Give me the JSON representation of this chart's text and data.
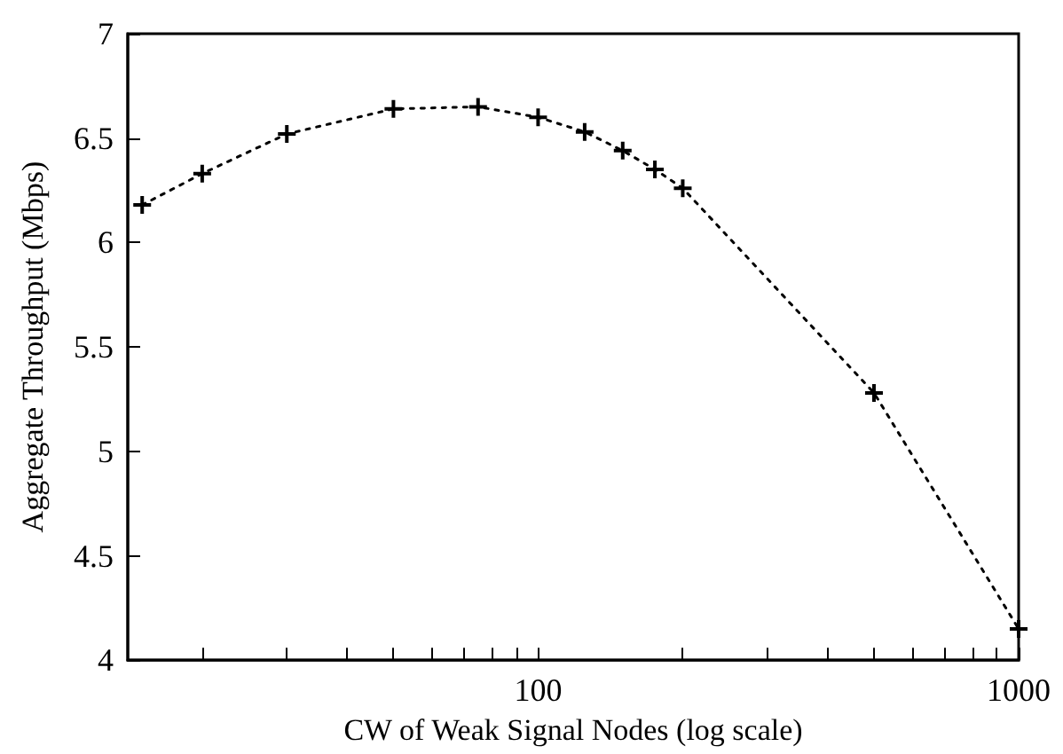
{
  "chart_data": {
    "type": "line",
    "xlabel": "CW of Weak Signal Nodes (log scale)",
    "ylabel": "Aggregate Throughput (Mbps)",
    "x": [
      15,
      20,
      30,
      50,
      75,
      100,
      125,
      150,
      175,
      200,
      500,
      1000
    ],
    "values": [
      6.18,
      6.33,
      6.52,
      6.64,
      6.65,
      6.6,
      6.53,
      6.44,
      6.35,
      6.26,
      5.28,
      4.15
    ],
    "color": "#000000",
    "marker": "cross",
    "line_style": "dotted",
    "log": "x",
    "grid": false,
    "xlim": [
      14,
      1000
    ],
    "xticks": [
      {
        "value": 20,
        "label": null
      },
      {
        "value": 30,
        "label": null
      },
      {
        "value": 40,
        "label": null
      },
      {
        "value": 50,
        "label": null
      },
      {
        "value": 60,
        "label": null
      },
      {
        "value": 70,
        "label": null
      },
      {
        "value": 80,
        "label": null
      },
      {
        "value": 90,
        "label": null
      },
      100,
      {
        "value": 200,
        "label": null
      },
      {
        "value": 300,
        "label": null
      },
      {
        "value": 400,
        "label": null
      },
      {
        "value": 500,
        "label": null
      },
      {
        "value": 600,
        "label": null
      },
      {
        "value": 700,
        "label": null
      },
      {
        "value": 800,
        "label": null
      },
      {
        "value": 900,
        "label": null
      },
      1000
    ],
    "ylim": [
      4,
      7
    ],
    "yticks": [
      4,
      4.5,
      5,
      5.5,
      6,
      6.5,
      7
    ]
  }
}
